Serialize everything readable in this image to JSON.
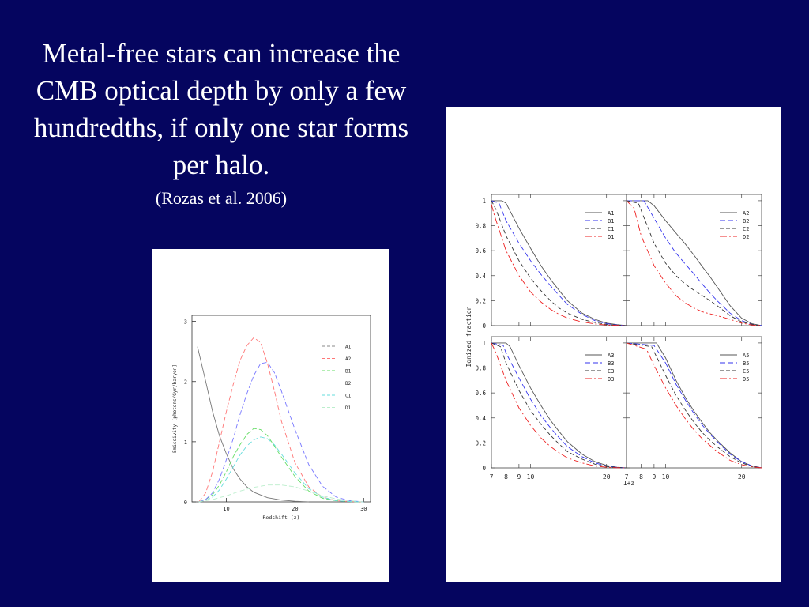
{
  "slide": {
    "title": "Metal-free stars can increase the CMB optical depth by only a few hundredths, if only one star forms per halo.",
    "citation": "(Rozas et al. 2006)"
  },
  "colors": {
    "background": "#05055f",
    "A": "#555555",
    "B": "#3333ee",
    "C": "#333333",
    "D": "#ee2222",
    "left_A": "#888888",
    "left_B": "#8888ff",
    "left_C": "#66dd66",
    "left_D": "#66cccc"
  },
  "chart_data": [
    {
      "type": "line",
      "xlabel": "Redshift (z)",
      "ylabel": "Emissivity [photons/Gyr/baryon]",
      "xlim": [
        5,
        31
      ],
      "ylim": [
        0,
        3.1
      ],
      "xticks": [
        "10",
        "20",
        "30"
      ],
      "yticks": [
        "0",
        "1",
        "2",
        "3"
      ],
      "legend": [
        "A1",
        "A2",
        "B1",
        "B2",
        "C1",
        "D1"
      ],
      "legend_position": "top-right",
      "series": [
        {
          "name": "A1",
          "x": [
            5.8,
            7,
            8,
            9,
            10,
            11,
            12,
            13,
            14,
            16,
            18,
            20,
            22
          ],
          "y": [
            2.58,
            2.0,
            1.5,
            1.1,
            0.8,
            0.55,
            0.38,
            0.25,
            0.16,
            0.07,
            0.03,
            0.01,
            0.0
          ]
        },
        {
          "name": "A2",
          "x": [
            6,
            7,
            8,
            9,
            10,
            11,
            12,
            13,
            14,
            15,
            16,
            17,
            18,
            20,
            22,
            24,
            26,
            28,
            30
          ],
          "y": [
            0,
            0.15,
            0.5,
            1.0,
            1.5,
            1.95,
            2.35,
            2.6,
            2.73,
            2.65,
            2.3,
            1.85,
            1.35,
            0.65,
            0.25,
            0.08,
            0.02,
            0.005,
            0
          ]
        },
        {
          "name": "B1",
          "x": [
            6,
            7,
            8,
            9,
            10,
            11,
            12,
            13,
            14,
            15,
            16,
            17,
            18,
            20,
            22,
            24,
            26,
            28,
            30
          ],
          "y": [
            0,
            0.04,
            0.12,
            0.28,
            0.5,
            0.75,
            0.95,
            1.12,
            1.22,
            1.2,
            1.1,
            0.93,
            0.75,
            0.42,
            0.18,
            0.06,
            0.02,
            0.005,
            0
          ]
        },
        {
          "name": "B2",
          "x": [
            6,
            7,
            8,
            9,
            10,
            11,
            12,
            13,
            14,
            15,
            16,
            17,
            18,
            20,
            22,
            24,
            26,
            28,
            30
          ],
          "y": [
            0,
            0.04,
            0.15,
            0.38,
            0.7,
            1.05,
            1.45,
            1.8,
            2.1,
            2.3,
            2.32,
            2.15,
            1.85,
            1.2,
            0.62,
            0.26,
            0.08,
            0.02,
            0
          ]
        },
        {
          "name": "C1",
          "x": [
            6,
            7,
            8,
            9,
            10,
            11,
            12,
            13,
            14,
            15,
            16,
            17,
            18,
            20,
            22,
            24,
            26,
            28,
            30
          ],
          "y": [
            0,
            0.02,
            0.08,
            0.2,
            0.38,
            0.58,
            0.78,
            0.93,
            1.03,
            1.08,
            1.05,
            0.95,
            0.8,
            0.48,
            0.22,
            0.08,
            0.02,
            0.005,
            0
          ]
        },
        {
          "name": "D1",
          "x": [
            6,
            8,
            10,
            12,
            14,
            16,
            18,
            20,
            22,
            24,
            26,
            28,
            30
          ],
          "y": [
            0,
            0.04,
            0.1,
            0.18,
            0.24,
            0.28,
            0.28,
            0.25,
            0.18,
            0.1,
            0.05,
            0.02,
            0
          ]
        }
      ]
    },
    {
      "type": "line",
      "panels": 4,
      "xlabel": "1+z",
      "ylabel": "Ionized fraction",
      "xlim": [
        7,
        24
      ],
      "ylim": [
        0,
        1.05
      ],
      "xticks": [
        "7",
        "8",
        "9",
        "10",
        "20"
      ],
      "yticks": [
        "0",
        "0.2",
        "0.4",
        "0.6",
        "0.8",
        "1"
      ],
      "legend_position": "top-right",
      "legends": [
        [
          "A1",
          "B1",
          "C1",
          "D1"
        ],
        [
          "A2",
          "B2",
          "C2",
          "D2"
        ],
        [
          "A3",
          "B3",
          "C3",
          "D3"
        ],
        [
          "A5",
          "B5",
          "C5",
          "D5"
        ]
      ],
      "series": [
        [
          {
            "name": "A1",
            "x": [
              7,
              7.7,
              8,
              9,
              10,
              11,
              12,
              13,
              14,
              16,
              18,
              20,
              22,
              24
            ],
            "y": [
              1,
              1,
              0.98,
              0.78,
              0.62,
              0.48,
              0.37,
              0.28,
              0.2,
              0.1,
              0.05,
              0.02,
              0.008,
              0
            ]
          },
          {
            "name": "B1",
            "x": [
              7,
              7.5,
              8,
              9,
              10,
              11,
              12,
              13,
              14,
              16,
              18,
              20,
              22,
              24
            ],
            "y": [
              1,
              0.98,
              0.84,
              0.66,
              0.52,
              0.41,
              0.32,
              0.24,
              0.17,
              0.09,
              0.04,
              0.015,
              0.005,
              0
            ]
          },
          {
            "name": "C1",
            "x": [
              7,
              7.3,
              8,
              9,
              10,
              11,
              12,
              13,
              14,
              16,
              18,
              20,
              22,
              24
            ],
            "y": [
              1,
              0.93,
              0.72,
              0.52,
              0.38,
              0.28,
              0.2,
              0.14,
              0.1,
              0.05,
              0.025,
              0.01,
              0.003,
              0
            ]
          },
          {
            "name": "D1",
            "x": [
              7,
              7.2,
              8,
              9,
              10,
              11,
              12,
              13,
              14,
              16,
              18,
              20,
              22,
              24
            ],
            "y": [
              0.97,
              0.88,
              0.6,
              0.4,
              0.27,
              0.19,
              0.13,
              0.09,
              0.06,
              0.03,
              0.013,
              0.005,
              0.002,
              0
            ]
          }
        ],
        [
          {
            "name": "A2",
            "x": [
              7,
              8.5,
              9,
              10,
              11,
              12,
              13,
              14,
              15,
              16,
              18,
              20,
              22,
              24
            ],
            "y": [
              1,
              1,
              0.96,
              0.84,
              0.74,
              0.65,
              0.56,
              0.47,
              0.39,
              0.31,
              0.16,
              0.06,
              0.015,
              0
            ]
          },
          {
            "name": "B2",
            "x": [
              7,
              8.2,
              9,
              10,
              11,
              12,
              13,
              14,
              15,
              16,
              18,
              20,
              22,
              24
            ],
            "y": [
              1,
              1,
              0.86,
              0.7,
              0.58,
              0.49,
              0.41,
              0.33,
              0.26,
              0.2,
              0.1,
              0.04,
              0.01,
              0
            ]
          },
          {
            "name": "C2",
            "x": [
              7,
              7.8,
              9,
              10,
              11,
              12,
              13,
              14,
              15,
              16,
              18,
              20,
              22,
              24
            ],
            "y": [
              1,
              0.98,
              0.66,
              0.5,
              0.4,
              0.33,
              0.28,
              0.24,
              0.2,
              0.16,
              0.08,
              0.03,
              0.01,
              0
            ]
          },
          {
            "name": "D2",
            "x": [
              7,
              7.5,
              8,
              9,
              10,
              11,
              12,
              13,
              14,
              16,
              18,
              20,
              22,
              24
            ],
            "y": [
              1,
              0.94,
              0.72,
              0.48,
              0.34,
              0.24,
              0.18,
              0.14,
              0.11,
              0.08,
              0.05,
              0.02,
              0.005,
              0
            ]
          }
        ],
        [
          {
            "name": "A3",
            "x": [
              7,
              8,
              8.3,
              9,
              10,
              11,
              12,
              13,
              14,
              16,
              18,
              20,
              22,
              24
            ],
            "y": [
              1,
              1,
              0.97,
              0.82,
              0.64,
              0.5,
              0.38,
              0.29,
              0.21,
              0.11,
              0.05,
              0.02,
              0.005,
              0
            ]
          },
          {
            "name": "B3",
            "x": [
              7,
              7.8,
              8,
              9,
              10,
              11,
              12,
              13,
              14,
              16,
              18,
              20,
              22,
              24
            ],
            "y": [
              1,
              0.98,
              0.92,
              0.72,
              0.55,
              0.42,
              0.32,
              0.24,
              0.17,
              0.09,
              0.04,
              0.015,
              0.004,
              0
            ]
          },
          {
            "name": "C3",
            "x": [
              7,
              7.6,
              8,
              9,
              10,
              11,
              12,
              13,
              14,
              16,
              18,
              20,
              22,
              24
            ],
            "y": [
              1,
              0.97,
              0.84,
              0.62,
              0.46,
              0.35,
              0.26,
              0.19,
              0.13,
              0.07,
              0.03,
              0.01,
              0.003,
              0
            ]
          },
          {
            "name": "D3",
            "x": [
              7,
              7.3,
              8,
              9,
              10,
              11,
              12,
              13,
              14,
              16,
              18,
              20,
              22,
              24
            ],
            "y": [
              1,
              0.92,
              0.7,
              0.48,
              0.34,
              0.24,
              0.17,
              0.12,
              0.08,
              0.04,
              0.015,
              0.005,
              0.001,
              0
            ]
          }
        ],
        [
          {
            "name": "A5",
            "x": [
              7,
              9.2,
              10,
              11,
              12,
              13,
              14,
              15,
              16,
              18,
              20,
              22,
              24
            ],
            "y": [
              1,
              1,
              0.88,
              0.7,
              0.56,
              0.45,
              0.36,
              0.28,
              0.22,
              0.12,
              0.05,
              0.015,
              0
            ]
          },
          {
            "name": "B5",
            "x": [
              7,
              9,
              10,
              11,
              12,
              13,
              14,
              15,
              16,
              18,
              20,
              22,
              24
            ],
            "y": [
              1,
              0.98,
              0.84,
              0.67,
              0.54,
              0.43,
              0.34,
              0.27,
              0.21,
              0.11,
              0.05,
              0.015,
              0
            ]
          },
          {
            "name": "C5",
            "x": [
              7,
              8.8,
              10,
              11,
              12,
              13,
              14,
              15,
              16,
              18,
              20,
              22,
              24
            ],
            "y": [
              1,
              0.97,
              0.74,
              0.58,
              0.46,
              0.36,
              0.28,
              0.22,
              0.17,
              0.09,
              0.04,
              0.012,
              0
            ]
          },
          {
            "name": "D5",
            "x": [
              7,
              8.4,
              9,
              10,
              11,
              12,
              13,
              14,
              16,
              18,
              20,
              22,
              24
            ],
            "y": [
              1,
              0.95,
              0.82,
              0.64,
              0.5,
              0.39,
              0.3,
              0.23,
              0.13,
              0.06,
              0.025,
              0.008,
              0
            ]
          }
        ]
      ]
    }
  ]
}
